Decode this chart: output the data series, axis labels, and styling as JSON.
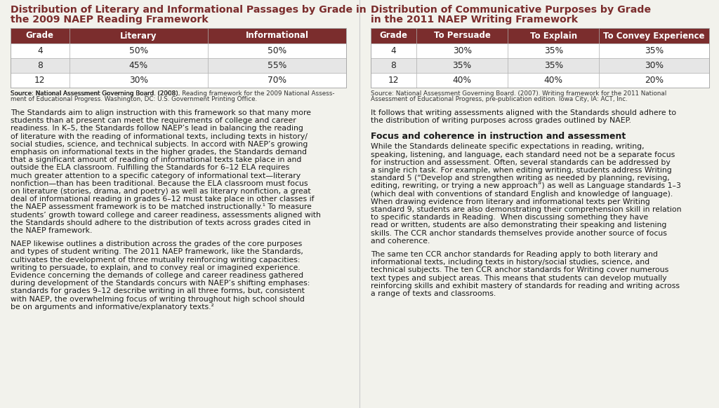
{
  "left_title_line1": "Distribution of Literary and Informational Passages by Grade in",
  "left_title_line2": "the 2009 NAEP Reading Framework",
  "left_table_headers": [
    "Grade",
    "Literary",
    "Informational"
  ],
  "left_table_rows": [
    [
      "4",
      "50%",
      "50%"
    ],
    [
      "8",
      "45%",
      "55%"
    ],
    [
      "12",
      "30%",
      "70%"
    ]
  ],
  "left_source_normal": "Source: National Assessment Governing Board. (2008). ",
  "left_source_italic": "Reading framework for the 2009 National Assess-\nment of Educational Progress.",
  "left_source_normal2": " Washington, DC: U.S. Government Printing Office.",
  "left_body1_lines": [
    "The Standards aim to align instruction with this framework so that many more",
    "students than at present can meet the requirements of college and career",
    "readiness. In K–5, the Standards follow NAEP’s lead in balancing the reading",
    "of literature with the reading of informational texts, including texts in history/",
    "social studies, science, and technical subjects. In accord with NAEP’s growing",
    "emphasis on informational texts in the higher grades, the Standards demand",
    "that a significant amount of reading of informational texts take place in and",
    "outside the ELA classroom. Fulfilling the Standards for 6–12 ELA requires",
    "much greater attention to a specific category of informational text—literary",
    "nonfiction—than has been traditional. Because the ELA classroom must focus",
    "on literature (stories, drama, and poetry) as well as literary nonfiction, a great",
    "deal of informational reading in grades 6–12 must take place in other classes if",
    "the NAEP assessment framework is to be matched instructionally.¹ To measure",
    "students’ growth toward college and career readiness, assessments aligned with",
    "the Standards should adhere to the distribution of texts across grades cited in",
    "the NAEP framework."
  ],
  "left_body2_lines": [
    "NAEP likewise outlines a distribution across the grades of the core purposes",
    "and types of student writing. The 2011 NAEP framework, like the Standards,",
    "cultivates the development of three mutually reinforcing writing capacities:",
    "writing to persuade, to explain, and to convey real or imagined experience.",
    "Evidence concerning the demands of college and career readiness gathered",
    "during development of the Standards concurs with NAEP’s shifting emphases:",
    "standards for grades 9–12 describe writing in all three forms, but, consistent",
    "with NAEP, the overwhelming focus of writing throughout high school should",
    "be on arguments and informative/explanatory texts.²"
  ],
  "right_title_line1": "Distribution of Communicative Purposes by Grade",
  "right_title_line2": "in the 2011 NAEP Writing Framework",
  "right_table_headers": [
    "Grade",
    "To Persuade",
    "To Explain",
    "To Convey Experience"
  ],
  "right_table_rows": [
    [
      "4",
      "30%",
      "35%",
      "35%"
    ],
    [
      "8",
      "35%",
      "35%",
      "30%"
    ],
    [
      "12",
      "40%",
      "40%",
      "20%"
    ]
  ],
  "right_source_normal": "Source: National Assessment Governing Board. (2007). ",
  "right_source_italic": "Writing framework for the 2011 National\nAssessment of Educational Progress, pre-publication edition.",
  "right_source_normal2": " Iowa City, IA: ACT, Inc.",
  "right_body1_lines": [
    "It follows that writing assessments aligned with the Standards should adhere to",
    "the distribution of writing purposes across grades outlined by NAEP."
  ],
  "right_heading": "Focus and coherence in instruction and assessment",
  "right_body2_lines": [
    "While the Standards delineate specific expectations in reading, writing,",
    "speaking, listening, and language, each standard need not be a separate focus",
    "for instruction and assessment. Often, several standards can be addressed by",
    "a single rich task. For example, when editing writing, students address Writing",
    "standard 5 (“Develop and strengthen writing as needed by planning, revising,",
    "editing, rewriting, or trying a new approach”) as well as Language standards 1–3",
    "(which deal with conventions of standard English and knowledge of language).",
    "When drawing evidence from literary and informational texts per Writing",
    "standard 9, students are also demonstrating their comprehension skill in relation",
    "to specific standards in Reading.  When discussing something they have",
    "read or written, students are also demonstrating their speaking and listening",
    "skills. The CCR anchor standards themselves provide another source of focus",
    "and coherence."
  ],
  "right_body3_lines": [
    "The same ten CCR anchor standards for Reading apply to both literary and",
    "informational texts, including texts in history/social studies, science, and",
    "technical subjects. The ten CCR anchor standards for Writing cover numerous",
    "text types and subject areas. This means that students can develop mutually",
    "reinforcing skills and exhibit mastery of standards for reading and writing across",
    "a range of texts and classrooms."
  ],
  "header_bg": "#7b2d2d",
  "header_fg": "#ffffff",
  "row_bg_odd": "#ffffff",
  "row_bg_even": "#e6e6e6",
  "title_color": "#7b2d2d",
  "body_text_color": "#1a1a1a",
  "source_text_color": "#333333",
  "border_color": "#aaaaaa",
  "bg_color": "#f2f2ec",
  "divider_color": "#cccccc"
}
